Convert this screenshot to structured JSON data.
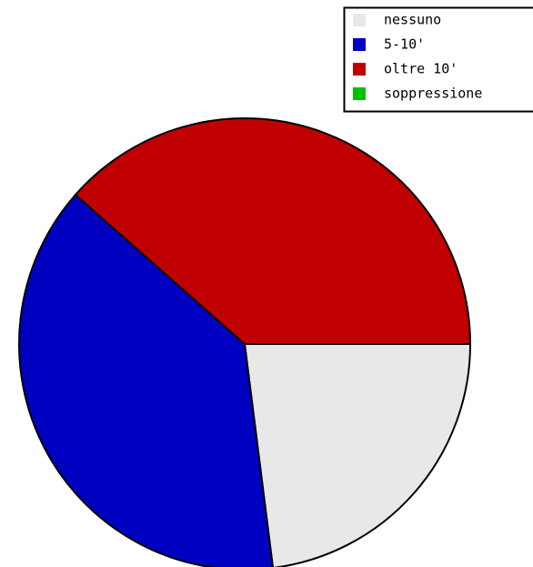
{
  "chart_data": {
    "type": "pie",
    "categories": [
      "nessuno",
      "5-10'",
      "oltre 10'",
      "soppressione"
    ],
    "values": [
      23,
      38.5,
      38.5,
      0
    ],
    "colors": [
      "#e8e8e8",
      "#0000c0",
      "#c00000",
      "#00c000"
    ],
    "start_angle": 0,
    "direction": "clockwise",
    "legend": "top-right"
  }
}
